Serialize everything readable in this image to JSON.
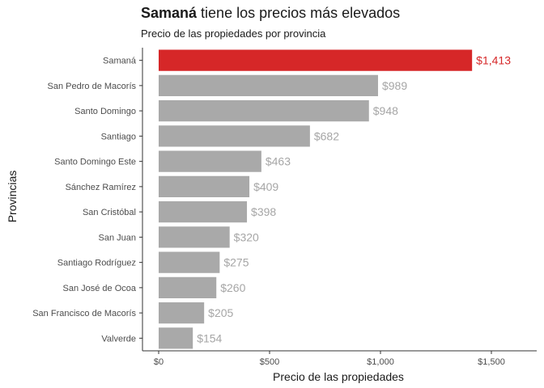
{
  "chart_data": {
    "type": "bar",
    "orientation": "horizontal",
    "title_highlight": "Samaná",
    "title_rest": " tiene los precios más elevados",
    "subtitle": "Precio de las propiedades por provincia",
    "xlabel": "Precio de las propiedades",
    "ylabel": "Provincias",
    "categories": [
      "Samaná",
      "San Pedro de Macorís",
      "Santo Domingo",
      "Santiago",
      "Santo Domingo Este",
      "Sánchez Ramírez",
      "San Cristóbal",
      "San Juan",
      "Santiago Rodríguez",
      "San José de Ocoa",
      "San Francisco de Macorís",
      "Valverde"
    ],
    "values": [
      1413,
      989,
      948,
      682,
      463,
      409,
      398,
      320,
      275,
      260,
      205,
      154
    ],
    "data_labels": [
      "$1,413",
      "$989",
      "$948",
      "$682",
      "$463",
      "$409",
      "$398",
      "$320",
      "$275",
      "$260",
      "$205",
      "$154"
    ],
    "x_ticks": [
      0,
      500,
      1000,
      1500
    ],
    "x_tick_labels": [
      "$0",
      "$500",
      "$1,000",
      "$1,500"
    ],
    "xlim": [
      0,
      1650
    ],
    "grid": false,
    "legend": "none",
    "highlight_index": 0,
    "colors": {
      "highlight": "#d62728",
      "default": "#a9a9a9",
      "highlight_label": "#d62728",
      "default_label": "#a6a6a6",
      "axis": "#333333",
      "tick_text": "#4d4d4d"
    }
  }
}
